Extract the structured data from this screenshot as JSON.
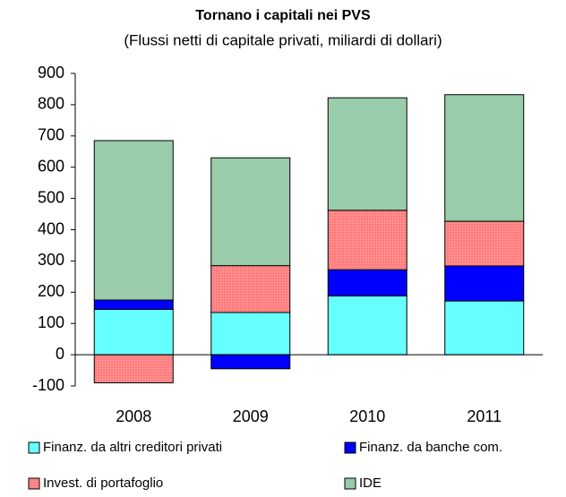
{
  "chart_data": {
    "type": "stacked_bar",
    "title": "Tornano i capitali nei PVS",
    "subtitle": "(Flussi netti di capitale privati, miliardi di dollari)",
    "categories": [
      "2008",
      "2009",
      "2010",
      "2011"
    ],
    "series": [
      {
        "name": "Finanz. da altri creditori privati",
        "color": "#66ffff",
        "values": [
          145,
          135,
          188,
          172
        ]
      },
      {
        "name": "Finanz. da banche com.",
        "color": "#0000ff",
        "values": [
          30,
          -45,
          84,
          112
        ]
      },
      {
        "name": "Invest. di portafoglio",
        "color": "#ff8080",
        "values": [
          -90,
          150,
          190,
          143
        ]
      },
      {
        "name": "IDE",
        "color": "#99ccaa",
        "values": [
          510,
          345,
          360,
          405
        ]
      }
    ],
    "ylim": [
      -100,
      900
    ],
    "yticks": [
      -100,
      0,
      100,
      200,
      300,
      400,
      500,
      600,
      700,
      800,
      900
    ]
  }
}
